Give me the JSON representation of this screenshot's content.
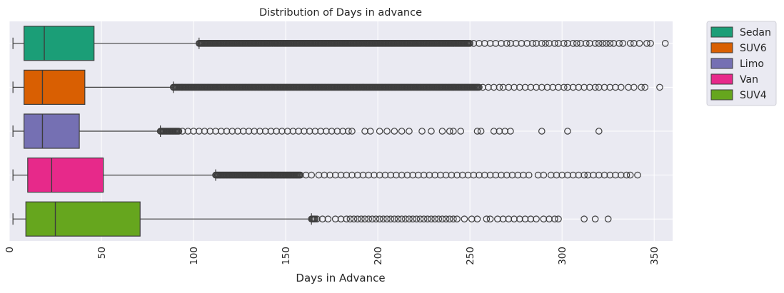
{
  "chart_data": {
    "type": "boxplot",
    "orientation": "horizontal",
    "title": "Distribution of Days in advance",
    "xlabel": "Days in Advance",
    "ylabel": "",
    "xlim": [
      0,
      360
    ],
    "xticks": [
      0,
      50,
      100,
      150,
      200,
      250,
      300,
      350
    ],
    "xtick_labels": [
      "0",
      "50",
      "100",
      "150",
      "200",
      "250",
      "300",
      "350"
    ],
    "xtick_rotation": 90,
    "grid": true,
    "legend_position": "outside-top-right",
    "series": [
      {
        "name": "Sedan",
        "color": "#1b9e77",
        "min": 2,
        "q1": 8,
        "median": 19,
        "q3": 46,
        "whisker_high": 103,
        "outliers_dense_range": [
          103,
          250
        ],
        "outliers": [
          252,
          255,
          258,
          261,
          264,
          267,
          270,
          272,
          275,
          278,
          281,
          284,
          286,
          289,
          291,
          293,
          296,
          298,
          301,
          303,
          306,
          308,
          310,
          313,
          315,
          318,
          320,
          322,
          324,
          326,
          328,
          331,
          333,
          337,
          339,
          342,
          346,
          348,
          356
        ]
      },
      {
        "name": "SUV6",
        "color": "#d95f02",
        "min": 2,
        "q1": 8,
        "median": 18,
        "q3": 41,
        "whisker_high": 89,
        "outliers_dense_range": [
          89,
          255
        ],
        "outliers": [
          257,
          260,
          263,
          266,
          268,
          271,
          274,
          277,
          280,
          283,
          286,
          289,
          292,
          295,
          298,
          301,
          303,
          306,
          309,
          312,
          315,
          318,
          320,
          323,
          326,
          329,
          332,
          336,
          339,
          343,
          345,
          353
        ]
      },
      {
        "name": "Limo",
        "color": "#7570b3",
        "min": 2,
        "q1": 8,
        "median": 18,
        "q3": 38,
        "whisker_high": 82,
        "outliers_dense_range": [
          82,
          92
        ],
        "outliers": [
          94,
          97,
          100,
          103,
          106,
          109,
          112,
          115,
          118,
          121,
          124,
          127,
          130,
          133,
          136,
          139,
          142,
          145,
          148,
          151,
          154,
          157,
          160,
          163,
          166,
          169,
          172,
          175,
          178,
          181,
          184,
          186,
          193,
          196,
          201,
          205,
          209,
          213,
          217,
          224,
          229,
          235,
          239,
          241,
          245,
          254,
          256,
          263,
          266,
          269,
          272,
          289,
          303,
          320
        ]
      },
      {
        "name": "Van",
        "color": "#e7298a",
        "min": 2,
        "q1": 10,
        "median": 23,
        "q3": 51,
        "whisker_high": 112,
        "outliers_dense_range": [
          112,
          158
        ],
        "outliers": [
          161,
          164,
          168,
          171,
          174,
          177,
          180,
          183,
          186,
          189,
          192,
          195,
          198,
          201,
          204,
          207,
          210,
          213,
          216,
          219,
          222,
          225,
          228,
          231,
          234,
          237,
          240,
          243,
          246,
          249,
          252,
          255,
          258,
          261,
          264,
          267,
          270,
          273,
          276,
          279,
          282,
          287,
          290,
          294,
          297,
          300,
          303,
          306,
          309,
          312,
          314,
          317,
          320,
          323,
          326,
          329,
          332,
          335,
          337,
          341
        ]
      },
      {
        "name": "SUV4",
        "color": "#66a61e",
        "min": 2,
        "q1": 9,
        "median": 25,
        "q3": 71,
        "whisker_high": 164,
        "outliers_dense_range": [
          164,
          166
        ],
        "outliers": [
          167,
          170,
          173,
          177,
          180,
          183,
          185,
          187,
          189,
          191,
          193,
          195,
          197,
          199,
          201,
          203,
          205,
          207,
          209,
          211,
          213,
          215,
          217,
          219,
          221,
          223,
          225,
          227,
          229,
          231,
          233,
          235,
          237,
          239,
          241,
          243,
          247,
          251,
          254,
          259,
          261,
          265,
          268,
          271,
          274,
          277,
          280,
          283,
          286,
          290,
          293,
          296,
          298,
          312,
          318,
          325
        ]
      }
    ]
  }
}
